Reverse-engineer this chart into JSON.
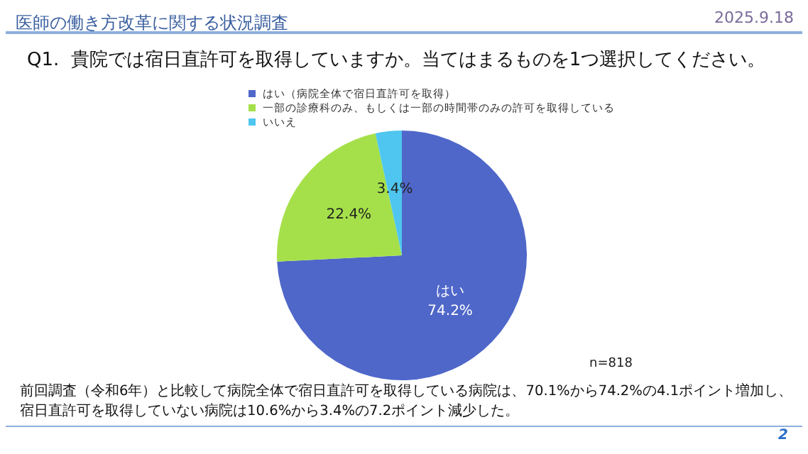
{
  "chart_data": {
    "type": "pie",
    "title": "医師の働き方改革に関する状況調査",
    "subtitle": "Q1.  貴院では宿日直許可を取得していますか。当てはまるものを1つ選択してください。",
    "categories": [
      "はい（病院全体で宿日直許可を取得）",
      "一部の診療科のみ、もしくは一部の時間帯のみの許可を取得している",
      "いいえ"
    ],
    "values": [
      74.2,
      22.4,
      3.4
    ],
    "colors": [
      "#4f67c9",
      "#a5e04a",
      "#4fc6ef"
    ],
    "value_labels": [
      "はい\n74.2%",
      "22.4%",
      "3.4%"
    ],
    "legend": "top",
    "annotations": [
      "2025.9.18",
      "n=818",
      "前回調査（令和6年）と比較して病院全体で宿日直許可を取得している病院は、70.1%から74.2%の4.1ポイント増加し、",
      "2",
      "宿日直許可を取得していない病院は10.6%から3.4%の7.2ポイント減少した。"
    ]
  }
}
